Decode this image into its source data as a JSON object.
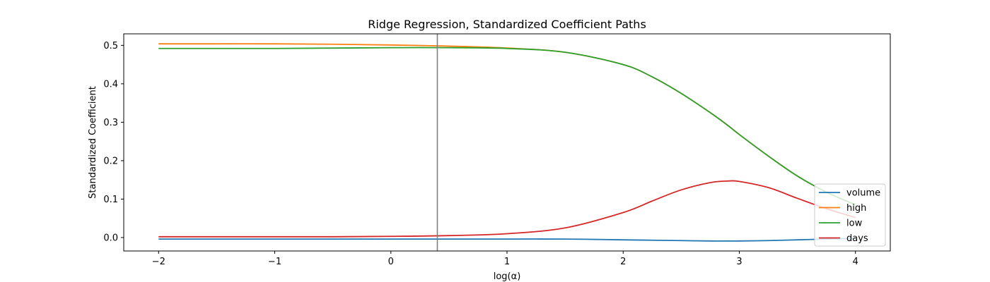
{
  "chart_data": {
    "type": "line",
    "title": "Ridge Regression, Standardized Coefficient Paths",
    "xlabel": "log(α)",
    "ylabel": "Standardized Coefficient",
    "xlim": [
      -2.3,
      4.3
    ],
    "ylim": [
      -0.035,
      0.53
    ],
    "xticks": [
      -2,
      -1,
      0,
      1,
      2,
      3,
      4
    ],
    "xtick_labels": [
      "−2",
      "−1",
      "0",
      "1",
      "2",
      "3",
      "4"
    ],
    "yticks": [
      0.0,
      0.1,
      0.2,
      0.3,
      0.4,
      0.5
    ],
    "ytick_labels": [
      "0.0",
      "0.1",
      "0.2",
      "0.3",
      "0.4",
      "0.5"
    ],
    "vline_x": 0.4,
    "vline_color": "#808080",
    "grid": false,
    "legend_position": "lower-right",
    "x": [
      -2.0,
      -1.5,
      -1.0,
      -0.5,
      0.0,
      0.5,
      1.0,
      1.5,
      2.0,
      2.25,
      2.5,
      2.75,
      2.9,
      3.0,
      3.25,
      3.5,
      3.75,
      4.0
    ],
    "series": [
      {
        "name": "volume",
        "color": "#1f77b4",
        "values": [
          -0.004,
          -0.004,
          -0.004,
          -0.004,
          -0.004,
          -0.004,
          -0.004,
          -0.004,
          -0.006,
          -0.007,
          -0.008,
          -0.009,
          -0.009,
          -0.009,
          -0.008,
          -0.006,
          -0.004,
          -0.002
        ]
      },
      {
        "name": "high",
        "color": "#ff7f0e",
        "values": [
          0.504,
          0.504,
          0.504,
          0.503,
          0.501,
          0.498,
          0.493,
          0.482,
          0.45,
          0.418,
          0.375,
          0.325,
          0.292,
          0.268,
          0.212,
          0.16,
          0.118,
          0.085
        ]
      },
      {
        "name": "low",
        "color": "#2ca02c",
        "values": [
          0.492,
          0.492,
          0.492,
          0.493,
          0.494,
          0.494,
          0.492,
          0.482,
          0.45,
          0.418,
          0.375,
          0.325,
          0.292,
          0.268,
          0.212,
          0.16,
          0.118,
          0.085
        ]
      },
      {
        "name": "days",
        "color": "#d62728",
        "values": [
          0.002,
          0.002,
          0.002,
          0.002,
          0.003,
          0.005,
          0.01,
          0.025,
          0.065,
          0.095,
          0.124,
          0.143,
          0.147,
          0.146,
          0.13,
          0.102,
          0.075,
          0.052
        ]
      }
    ]
  }
}
